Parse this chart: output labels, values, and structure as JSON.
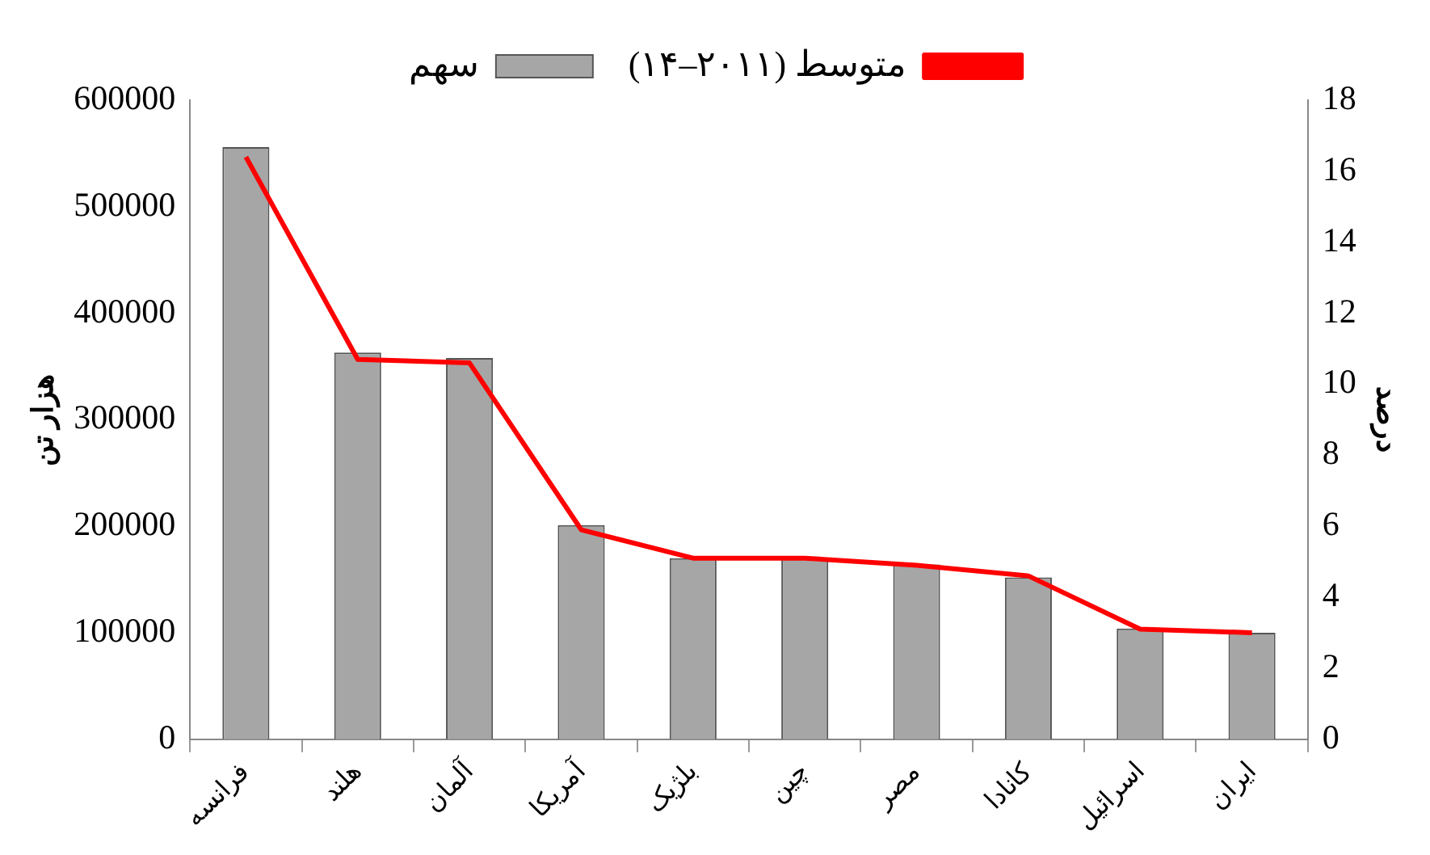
{
  "chart_data": {
    "type": "bar",
    "categories": [
      "فرانسه",
      "هلند",
      "آلمان",
      "آمریکا",
      "بلژیک",
      "چین",
      "مصر",
      "کانادا",
      "اسرائیل",
      "ایران"
    ],
    "series": [
      {
        "name": "متوسط (۲۰۱۱–۱۴)",
        "type": "line",
        "axis": "y2",
        "color": "#ff0000",
        "values": [
          16.4,
          10.7,
          10.6,
          5.9,
          5.1,
          5.1,
          4.9,
          4.6,
          3.1,
          3.0
        ]
      },
      {
        "name": "سهم",
        "color": "#a6a6a6",
        "values": [
          556000,
          363000,
          358000,
          201000,
          170000,
          170000,
          164000,
          152000,
          104000,
          100000
        ]
      }
    ],
    "ylabel": "هزار تن",
    "y2label": "درصد",
    "ylim": [
      0,
      600000
    ],
    "yticks": [
      0,
      100000,
      200000,
      300000,
      400000,
      500000,
      600000
    ],
    "y2lim": [
      0,
      18
    ],
    "y2ticks": [
      0,
      2,
      4,
      6,
      8,
      10,
      12,
      14,
      16,
      18
    ],
    "grid": false,
    "legend": "top",
    "marker": "none"
  }
}
